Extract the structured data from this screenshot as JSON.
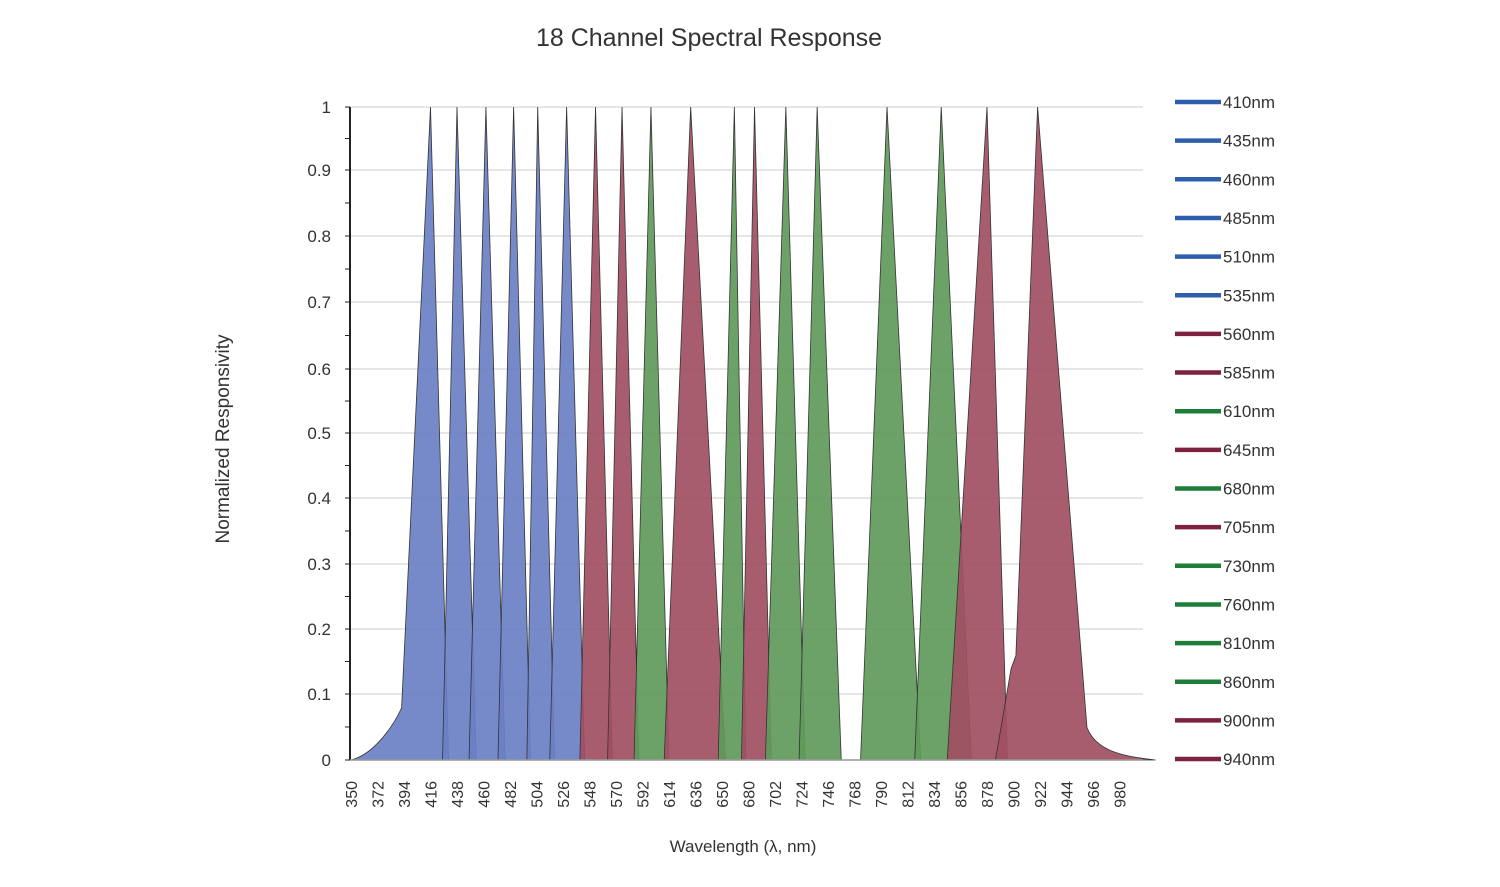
{
  "colors": {
    "blue": "#6a7fc4",
    "blue_edge": "#3d5aa8",
    "red": "#a14f63",
    "red_edge": "#7a2a40",
    "green": "#5f9a5a",
    "green_edge": "#3f7d3a",
    "legend_blue": "#2e5fae",
    "legend_red": "#7d2141",
    "legend_green": "#1f7d3a",
    "grid": "#cccccc",
    "axis": "#222222"
  },
  "chart_data": {
    "type": "area",
    "title": "18 Channel Spectral Response",
    "xlabel": "Wavelength (λ, nm)",
    "ylabel": "Normalized Responsivity",
    "y_ticks": [
      "0",
      "0.1",
      "0.2",
      "0.3",
      "0.4",
      "0.5",
      "0.6",
      "0.7",
      "0.8",
      "0.9",
      "1"
    ],
    "x_ticks": [
      "350",
      "372",
      "394",
      "416",
      "438",
      "460",
      "482",
      "504",
      "526",
      "548",
      "570",
      "592",
      "614",
      "636",
      "650",
      "680",
      "702",
      "724",
      "746",
      "768",
      "790",
      "812",
      "834",
      "856",
      "878",
      "900",
      "922",
      "944",
      "966",
      "980"
    ],
    "ylim": [
      0,
      1
    ],
    "grid": true,
    "legend_position": "right",
    "series": [
      {
        "name": "410nm",
        "color": "blue",
        "start": 350,
        "peak": 416,
        "end": 431
      },
      {
        "name": "435nm",
        "color": "blue",
        "start": 426,
        "peak": 438,
        "end": 454
      },
      {
        "name": "460nm",
        "color": "blue",
        "start": 448,
        "peak": 462,
        "end": 478
      },
      {
        "name": "485nm",
        "color": "blue",
        "start": 472,
        "peak": 485,
        "end": 499
      },
      {
        "name": "510nm",
        "color": "blue",
        "start": 496,
        "peak": 505,
        "end": 519
      },
      {
        "name": "535nm",
        "color": "blue",
        "start": 515,
        "peak": 529,
        "end": 544
      },
      {
        "name": "560nm",
        "color": "red",
        "start": 540,
        "peak": 553,
        "end": 567
      },
      {
        "name": "585nm",
        "color": "red",
        "start": 563,
        "peak": 575,
        "end": 589
      },
      {
        "name": "610nm",
        "color": "green",
        "start": 585,
        "peak": 599,
        "end": 614
      },
      {
        "name": "645nm",
        "color": "red",
        "start": 610,
        "peak": 632,
        "end": 654
      },
      {
        "name": "680nm",
        "color": "green",
        "start": 648,
        "peak": 664,
        "end": 677
      },
      {
        "name": "705nm",
        "color": "red",
        "start": 672,
        "peak": 685,
        "end": 699
      },
      {
        "name": "730nm",
        "color": "green",
        "start": 694,
        "peak": 711,
        "end": 727
      },
      {
        "name": "760nm",
        "color": "green",
        "start": 722,
        "peak": 737,
        "end": 757
      },
      {
        "name": "810nm",
        "color": "green",
        "start": 773,
        "peak": 795,
        "end": 823
      },
      {
        "name": "860nm",
        "color": "green",
        "start": 818,
        "peak": 840,
        "end": 865
      },
      {
        "name": "900nm",
        "color": "red",
        "start": 845,
        "peak": 878,
        "end": 895
      },
      {
        "name": "940nm",
        "color": "red",
        "start": 885,
        "peak": 920,
        "end": 999
      }
    ]
  }
}
